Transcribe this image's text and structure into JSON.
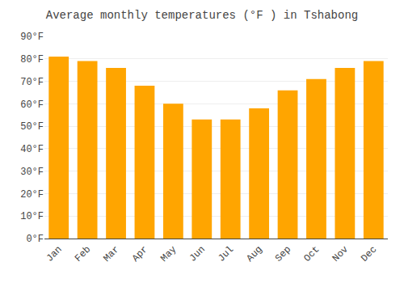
{
  "chart_data": {
    "type": "bar",
    "title": "Average monthly temperatures (°F ) in Tshabong",
    "categories": [
      "Jan",
      "Feb",
      "Mar",
      "Apr",
      "May",
      "Jun",
      "Jul",
      "Aug",
      "Sep",
      "Oct",
      "Nov",
      "Dec"
    ],
    "values": [
      81,
      79,
      76,
      68,
      60,
      53,
      53,
      58,
      66,
      71,
      76,
      79
    ],
    "color": "#FFA500",
    "ylim": [
      0,
      90
    ],
    "yticks": [
      {
        "value": 0,
        "label": "0°F"
      },
      {
        "value": 10,
        "label": "10°F"
      },
      {
        "value": 20,
        "label": "20°F"
      },
      {
        "value": 30,
        "label": "30°F"
      },
      {
        "value": 40,
        "label": "40°F"
      },
      {
        "value": 50,
        "label": "50°F"
      },
      {
        "value": 60,
        "label": "60°F"
      },
      {
        "value": 70,
        "label": "70°F"
      },
      {
        "value": 80,
        "label": "80°F"
      },
      {
        "value": 90,
        "label": "90°F"
      }
    ],
    "grid": true
  }
}
